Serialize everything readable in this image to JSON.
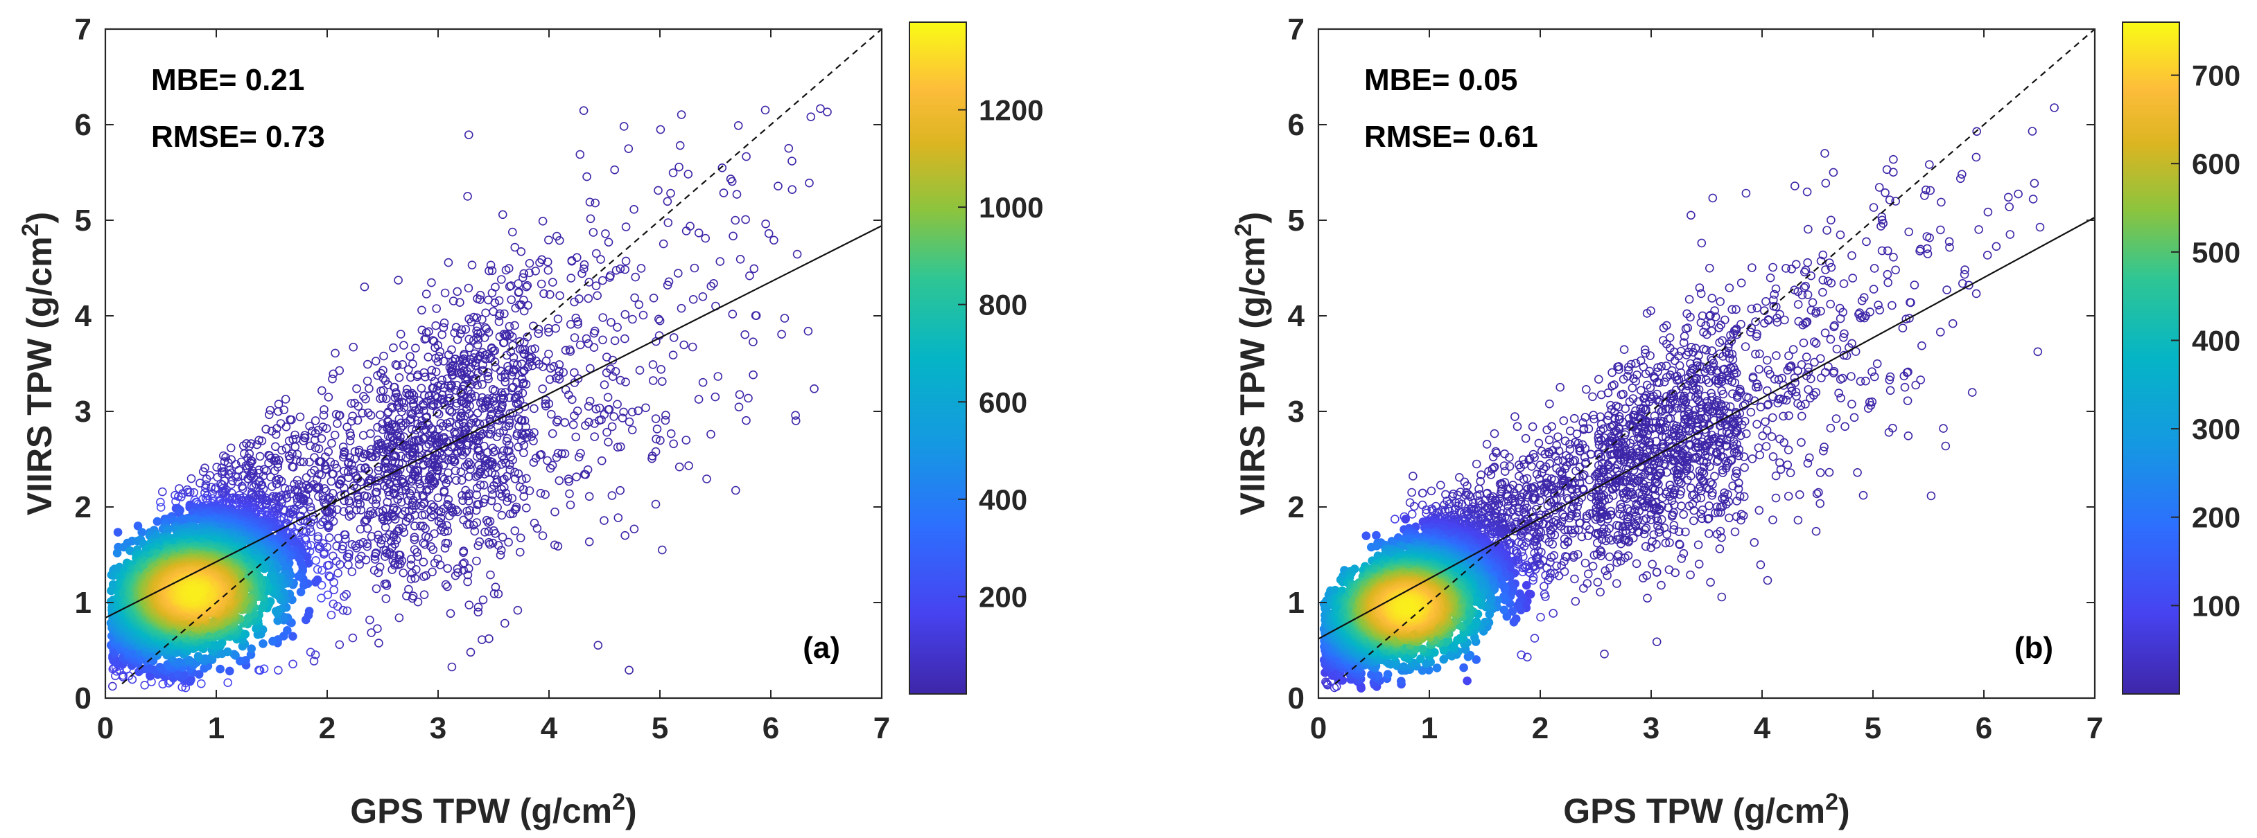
{
  "chart_data": [
    {
      "type": "scatter",
      "panel_label": "(a)",
      "xlabel_main": "GPS TPW (g/cm",
      "xlabel_sup": "2",
      "xlabel_end": ")",
      "ylabel_main": "VIIRS TPW (g/cm",
      "ylabel_sup": "2",
      "ylabel_end": ")",
      "xlim": [
        0,
        7
      ],
      "ylim": [
        0,
        7
      ],
      "xticks": [
        "0",
        "1",
        "2",
        "3",
        "4",
        "5",
        "6",
        "7"
      ],
      "yticks": [
        "0",
        "1",
        "2",
        "3",
        "4",
        "5",
        "6",
        "7"
      ],
      "stats": [
        "MBE= 0.21",
        "RMSE= 0.73"
      ],
      "lines": {
        "one_to_one": {
          "slope": 1.0,
          "intercept": 0.0,
          "style": "dashed"
        },
        "regression": {
          "slope": 0.586,
          "intercept": 0.84,
          "style": "solid"
        }
      },
      "colorbar": {
        "range": [
          0,
          1380
        ],
        "ticks": [
          200,
          400,
          600,
          800,
          1000,
          1200
        ],
        "tick_labels": [
          "200",
          "400",
          "600",
          "800",
          "1000",
          "1200"
        ],
        "colormap": "parula"
      },
      "density": {
        "peak_x": 0.8,
        "peak_y": 1.1,
        "peak_count": 1380
      }
    },
    {
      "type": "scatter",
      "panel_label": "(b)",
      "xlabel_main": "GPS TPW (g/cm",
      "xlabel_sup": "2",
      "xlabel_end": ")",
      "ylabel_main": "VIIRS TPW (g/cm",
      "ylabel_sup": "2",
      "ylabel_end": ")",
      "xlim": [
        0,
        7
      ],
      "ylim": [
        0,
        7
      ],
      "xticks": [
        "0",
        "1",
        "2",
        "3",
        "4",
        "5",
        "6",
        "7"
      ],
      "yticks": [
        "0",
        "1",
        "2",
        "3",
        "4",
        "5",
        "6",
        "7"
      ],
      "stats": [
        "MBE= 0.05",
        "RMSE= 0.61"
      ],
      "lines": {
        "one_to_one": {
          "slope": 1.0,
          "intercept": 0.0,
          "style": "dashed"
        },
        "regression": {
          "slope": 0.63,
          "intercept": 0.62,
          "style": "solid"
        }
      },
      "colorbar": {
        "range": [
          0,
          760
        ],
        "ticks": [
          100,
          200,
          300,
          400,
          500,
          600,
          700
        ],
        "tick_labels": [
          "100",
          "200",
          "300",
          "400",
          "500",
          "600",
          "700"
        ],
        "colormap": "parula"
      },
      "density": {
        "peak_x": 0.8,
        "peak_y": 0.95,
        "peak_count": 760
      }
    }
  ]
}
